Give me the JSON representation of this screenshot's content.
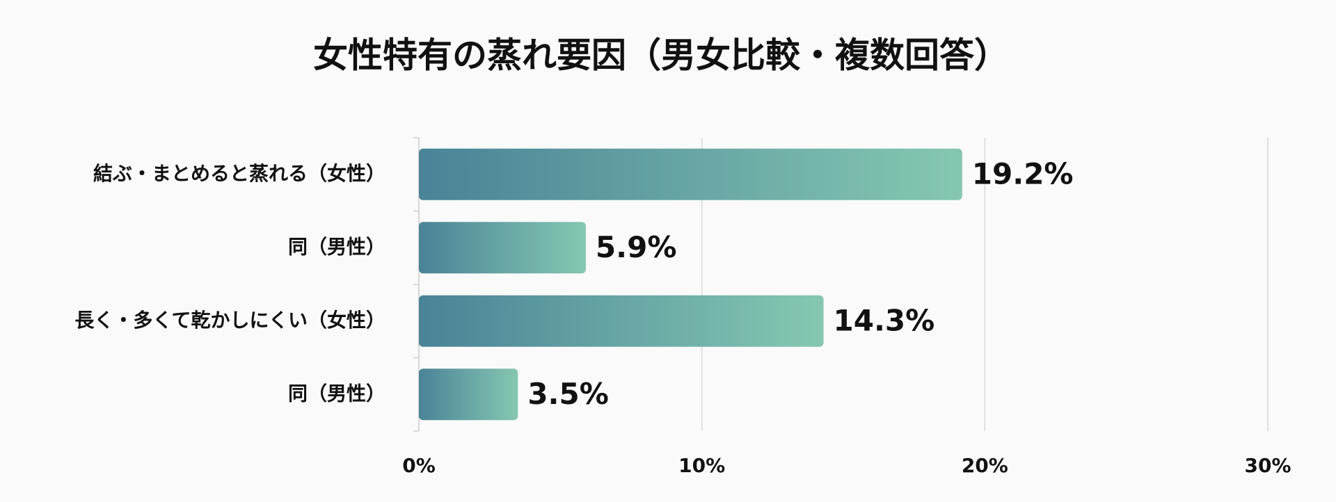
{
  "chart_data": {
    "type": "bar",
    "orientation": "horizontal",
    "title": "女性特有の蒸れ要因（男女比較・複数回答）",
    "categories": [
      "結ぶ・まとめると蒸れる（女性）",
      "同（男性）",
      "長く・多くて乾かしにくい（女性）",
      "同（男性）"
    ],
    "values": [
      19.2,
      5.9,
      14.3,
      3.5
    ],
    "value_labels": [
      "19.2%",
      "5.9%",
      "14.3%",
      "3.5%"
    ],
    "gradient": [
      "#4a8397",
      "#86c7b1"
    ],
    "xlim": [
      0,
      30
    ],
    "xticks": [
      {
        "value": 0,
        "label": "0%"
      },
      {
        "value": 10,
        "label": "10%"
      },
      {
        "value": 20,
        "label": "20%"
      },
      {
        "value": 30,
        "label": "30%"
      }
    ],
    "grid": true
  }
}
